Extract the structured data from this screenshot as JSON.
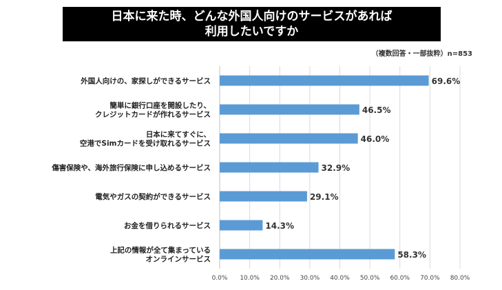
{
  "title": {
    "line1": "日本に来た時、どんな外国人向けのサービスがあれば",
    "line2": "利用したいですか"
  },
  "note": "（複数回答・一部抜粋）n=853",
  "chart_data": {
    "type": "bar",
    "orientation": "horizontal",
    "categories": [
      [
        "外国人向けの、家探しができるサービス"
      ],
      [
        "簡単に銀行口座を開設したり、",
        "クレジットカードが作れるサービス"
      ],
      [
        "日本に来てすぐに、",
        "空港でSimカードを受け取れるサービス"
      ],
      [
        "傷害保険や、海外旅行保険に申し込めるサービス"
      ],
      [
        "電気やガスの契約ができるサービス"
      ],
      [
        "お金を借りられるサービス"
      ],
      [
        "上記の情報が全て集まっている",
        "オンラインサービス"
      ]
    ],
    "values": [
      69.6,
      46.5,
      46.0,
      32.9,
      29.1,
      14.3,
      58.3
    ],
    "value_labels": [
      "69.6%",
      "46.5%",
      "46.0%",
      "32.9%",
      "29.1%",
      "14.3%",
      "58.3%"
    ],
    "xlim": [
      0,
      80
    ],
    "xticks": [
      0,
      10,
      20,
      30,
      40,
      50,
      60,
      70,
      80
    ],
    "xtick_labels": [
      "0.0%",
      "10.0%",
      "20.0%",
      "30.0%",
      "40.0%",
      "50.0%",
      "60.0%",
      "70.0%",
      "80.0%"
    ],
    "bar_color": "#5B9BD5",
    "grid": "vertical",
    "grid_color": "#D9D9D9"
  }
}
